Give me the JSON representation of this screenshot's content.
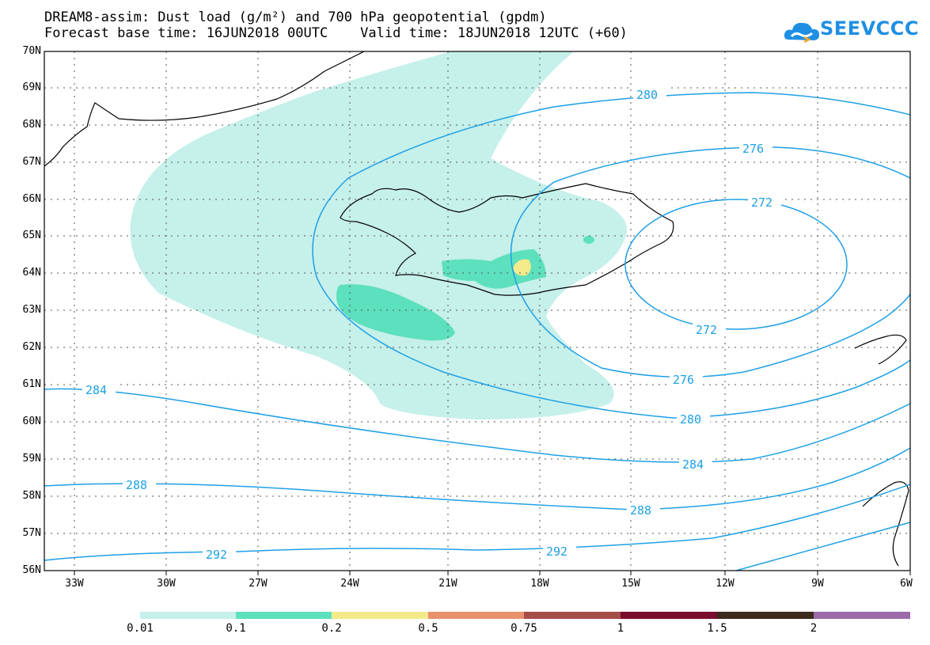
{
  "title": {
    "line1": "DREAM8-assim: Dust load (g/m²) and 700 hPa geopotential (gpdm)",
    "line2": "Forecast base time: 16JUN2018 00UTC    Valid time: 18JUN2018 12UTC (+60)"
  },
  "logo": {
    "text": "SEEVCCC",
    "color": "#1f8fe3"
  },
  "map": {
    "lat_labels": [
      "70N",
      "69N",
      "68N",
      "67N",
      "66N",
      "65N",
      "64N",
      "63N",
      "62N",
      "61N",
      "60N",
      "59N",
      "58N",
      "57N",
      "56N"
    ],
    "lon_labels": [
      "33W",
      "30W",
      "27W",
      "24W",
      "21W",
      "18W",
      "15W",
      "12W",
      "9W",
      "6W"
    ],
    "contour_color": "#1ea0e6",
    "contour_labels": {
      "c280a": "280",
      "c276a": "276",
      "c272a": "272",
      "c272b": "272",
      "c276b": "276",
      "c280b": "280",
      "c284a": "284",
      "c284b": "284",
      "c288a": "288",
      "c288b": "288",
      "c292a": "292",
      "c292b": "292"
    }
  },
  "colorbar": {
    "labels": [
      "0.01",
      "0.1",
      "0.2",
      "0.5",
      "0.75",
      "1",
      "1.5",
      "2"
    ],
    "colors": [
      "#c6f0ea",
      "#5de0bd",
      "#f3ea8a",
      "#e8916c",
      "#a64d49",
      "#7a0d2e",
      "#3c2a1c",
      "#9b6ba8"
    ]
  }
}
